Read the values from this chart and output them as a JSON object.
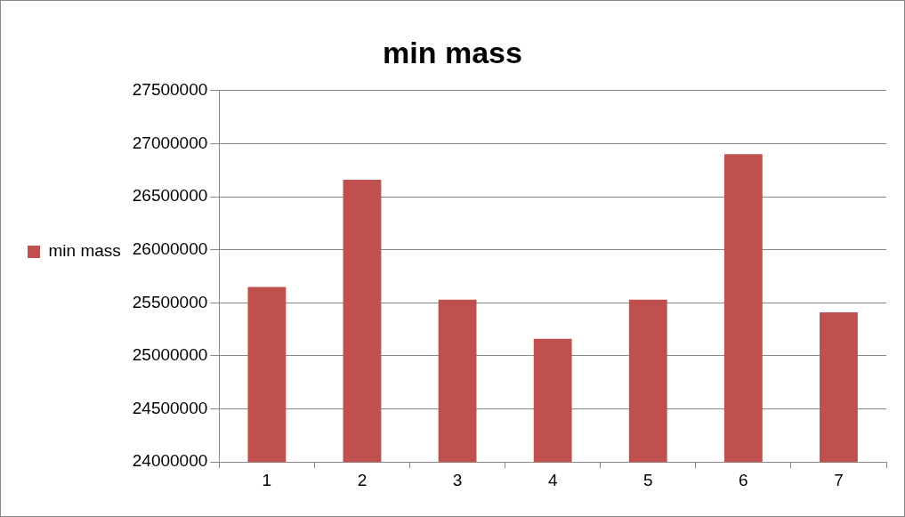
{
  "chart_data": {
    "type": "bar",
    "title": "min mass",
    "categories": [
      "1",
      "2",
      "3",
      "4",
      "5",
      "6",
      "7"
    ],
    "series": [
      {
        "name": "min mass",
        "color": "#c0504d",
        "values": [
          25650000,
          26660000,
          25530000,
          25160000,
          25530000,
          26900000,
          25410000
        ]
      }
    ],
    "ylim": [
      24000000,
      27500000
    ],
    "yticks": [
      24000000,
      24500000,
      25000000,
      25500000,
      26000000,
      26500000,
      27000000,
      27500000
    ],
    "grid": "y",
    "legend": "left"
  }
}
